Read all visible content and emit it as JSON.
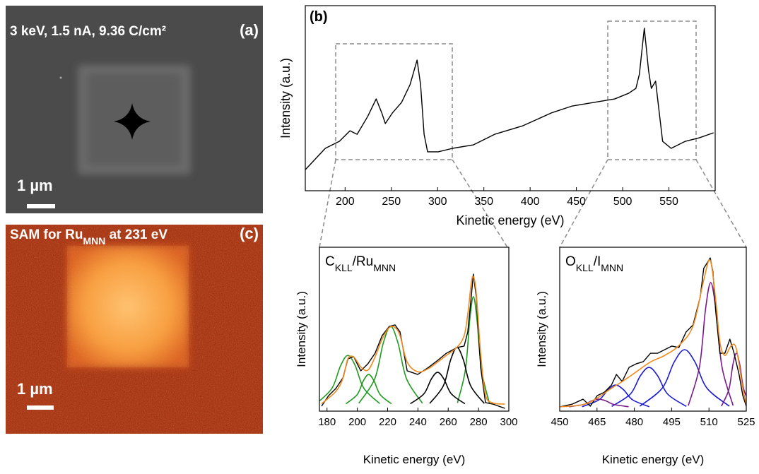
{
  "image_panels": [
    {
      "caption": [
        {
          "text": "3 keV, 1.5 nA, 9.36 C/cm²"
        }
      ],
      "label": "(a)",
      "scale_bar": "1 µm"
    },
    {
      "caption": [
        {
          "text": "SAM for Ru"
        },
        {
          "text": "MNN",
          "sub": true
        },
        {
          "text": " at 231 eV"
        }
      ],
      "label": "(c)",
      "scale_bar": "1 µm"
    }
  ],
  "chart_data": [
    {
      "type": "line",
      "label": "(b)",
      "x_label": "Kinetic energy (eV)",
      "y_label": "Intensity (a.u.)",
      "xlim": [
        157,
        600
      ],
      "ylim": [
        0,
        100
      ],
      "xticks": [
        200,
        250,
        300,
        350,
        400,
        450,
        500,
        550
      ],
      "series": [
        {
          "color": "#000000",
          "smooth": false,
          "x": [
            157.3,
            178.6,
            193.9,
            205.3,
            213,
            224.4,
            233.6,
            239.7,
            243.5,
            251.1,
            261,
            270.2,
            277.8,
            281.6,
            285.4,
            289.2,
            300.7,
            316,
            338.8,
            361.7,
            392.2,
            422.7,
            445.6,
            468.5,
            491.4,
            506.6,
            514.3,
            518.1,
            523.4,
            528,
            531,
            535.6,
            538.7,
            543.2,
            552.4,
            567.7,
            582.9,
            598.2
          ],
          "values": [
            11.5,
            22.9,
            26.7,
            32.4,
            30.5,
            40.1,
            49.6,
            42,
            36.3,
            42,
            47.7,
            57.3,
            70.6,
            57.3,
            30.5,
            21,
            21,
            22.9,
            24.8,
            30.5,
            35.1,
            42,
            45.8,
            47.7,
            49.6,
            52.7,
            55.3,
            63,
            87.8,
            64.9,
            55.3,
            59.2,
            45.8,
            26.7,
            22.9,
            26.7,
            28.6,
            31.3
          ]
        }
      ]
    },
    {
      "type": "line",
      "title": [
        {
          "text": "C"
        },
        {
          "text": "KLL",
          "sub": true
        },
        {
          "text": "/Ru"
        },
        {
          "text": "MNN",
          "sub": true
        }
      ],
      "x_label": "Kinetic energy (eV)",
      "y_label": "Intensity (a.u.)",
      "xlim": [
        175,
        300
      ],
      "ylim": [
        0,
        100
      ],
      "xticks": [
        180,
        200,
        220,
        240,
        260,
        280,
        300
      ],
      "series": [
        {
          "color": "#1f9a1f",
          "smooth": true,
          "x": [
            173,
            183.3,
            188.9,
            193.8,
            198.7,
            204.3,
            214.8
          ],
          "values": [
            4.6,
            14,
            27.6,
            34,
            27.6,
            14,
            4.6
          ]
        },
        {
          "color": "#1f9a1f",
          "smooth": true,
          "x": [
            192.5,
            200,
            204,
            207.5,
            211,
            215,
            222.5
          ],
          "values": [
            4.5,
            10.2,
            18.5,
            22.4,
            18.5,
            10.2,
            4.5
          ]
        },
        {
          "color": "#1f9a1f",
          "smooth": true,
          "x": [
            201,
            211.5,
            217.1,
            222,
            226.9,
            232.5,
            243
          ],
          "values": [
            4.8,
            19.7,
            41.4,
            51.7,
            41.4,
            19.7,
            4.8
          ]
        },
        {
          "color": "#1f9a1f",
          "smooth": true,
          "x": [
            266.1,
            271.4,
            274.2,
            276.6,
            279,
            281.9,
            287.1
          ],
          "values": [
            5,
            25.6,
            55.6,
            69.8,
            55.6,
            25.6,
            5
          ]
        },
        {
          "color": "#000000",
          "smooth": true,
          "x": [
            235,
            244,
            248.8,
            253,
            257.2,
            262,
            271
          ],
          "values": [
            4.5,
            10.6,
            19.5,
            23.7,
            19.5,
            10.6,
            4.5
          ]
        },
        {
          "color": "#000000",
          "smooth": true,
          "x": [
            247.8,
            256.8,
            261.6,
            265.8,
            270,
            274.8,
            283.8
          ],
          "values": [
            4.7,
            15.5,
            31.3,
            38.8,
            31.3,
            15.5,
            4.7
          ]
        },
        {
          "color": "#000000",
          "smooth": false,
          "x": [
            176.4,
            181.1,
            185.8,
            190.5,
            193.8,
            197.6,
            202.3,
            207,
            211.7,
            216.4,
            221.1,
            224.9,
            228.2,
            232.9,
            239.9,
            247,
            253.1,
            258.8,
            265.8,
            270.5,
            272.9,
            275.2,
            276.6,
            278.5,
            281.4,
            284.6,
            289.4,
            297.4
          ],
          "values": [
            3,
            9.5,
            13.8,
            20.3,
            31.9,
            33.2,
            24.6,
            28.9,
            35.3,
            46.1,
            51.7,
            52.6,
            48.3,
            24.6,
            22.4,
            26.7,
            31,
            35.3,
            38.8,
            39.7,
            48.3,
            69.8,
            83.6,
            69.8,
            26.7,
            5.2,
            4.3,
            1.7
          ]
        },
        {
          "color": "#f08a1e",
          "smooth": true,
          "x": [
            176.4,
            185.8,
            190.5,
            193.8,
            197.6,
            202.3,
            207,
            211.7,
            216.4,
            221.1,
            224.9,
            228.2,
            232.9,
            239.9,
            247,
            253.1,
            258.8,
            265.8,
            270.5,
            273,
            275.2,
            276.6,
            278.5,
            281.4,
            284.6,
            289.4,
            297.4
          ],
          "values": [
            4.5,
            12,
            20,
            32,
            33,
            27,
            25,
            33,
            44,
            51,
            51,
            46,
            30,
            24,
            26,
            30,
            34,
            39,
            46,
            60,
            78,
            82,
            72,
            35,
            10,
            5,
            4.3
          ]
        }
      ]
    },
    {
      "type": "line",
      "title": [
        {
          "text": "O"
        },
        {
          "text": "KLL",
          "sub": true
        },
        {
          "text": "/I"
        },
        {
          "text": "MNN",
          "sub": true
        }
      ],
      "x_label": "Kinetic energy (eV)",
      "y_label": "Intensity (a.u.)",
      "xlim": [
        450,
        525
      ],
      "ylim": [
        0,
        100
      ],
      "xticks": [
        450,
        465,
        480,
        495,
        510,
        525
      ],
      "series": [
        {
          "color": "#1a1ad6",
          "smooth": true,
          "x": [
            459,
            465.8,
            469.4,
            472.5,
            475.7,
            479.3,
            486
          ],
          "values": [
            2.7,
            6.9,
            13,
            15.9,
            13,
            6.9,
            2.7
          ]
        },
        {
          "color": "#1a1ad6",
          "smooth": true,
          "x": [
            470.9,
            478.4,
            482.4,
            485.9,
            489.4,
            493.4,
            500.9
          ],
          "values": [
            2.9,
            10.4,
            21.5,
            26.7,
            21.5,
            10.4,
            2.9
          ]
        },
        {
          "color": "#1a1ad6",
          "smooth": true,
          "x": [
            482.2,
            491.2,
            496,
            500.2,
            504.4,
            509.2,
            518.2
          ],
          "values": [
            3,
            14,
            29.9,
            37.5,
            29.9,
            14,
            3
          ]
        },
        {
          "color": "#7a1a8a",
          "smooth": true,
          "x": [
            453.7,
            459.7,
            462.9,
            465.7,
            468.5,
            471.7,
            477.7
          ],
          "values": [
            2.7,
            4.1,
            6.3,
            7.3,
            6.3,
            4.1,
            2.7
          ]
        },
        {
          "color": "#7a1a8a",
          "smooth": true,
          "x": [
            501.7,
            506.2,
            508.6,
            510.7,
            512.8,
            515.2,
            519.7
          ],
          "values": [
            3.4,
            27.2,
            62,
            78.4,
            62,
            27.2,
            3.4
          ]
        },
        {
          "color": "#7a1a8a",
          "smooth": true,
          "x": [
            515,
            518,
            519.6,
            521,
            522.4,
            524,
            527
          ],
          "values": [
            3,
            13.2,
            28.2,
            35.3,
            28.2,
            13.2,
            3
          ]
        },
        {
          "color": "#000000",
          "smooth": false,
          "x": [
            450,
            455.1,
            459.4,
            462.3,
            465.1,
            468,
            470.8,
            472.8,
            475.1,
            477.9,
            480.8,
            483.6,
            486.5,
            489.3,
            492.2,
            495.1,
            497.9,
            500.8,
            503.6,
            506.5,
            507.9,
            509.3,
            510.5,
            511.6,
            512.7,
            514.4,
            516.4,
            518.4,
            520.1,
            522.1,
            523.6,
            525
          ],
          "values": [
            2.6,
            4.3,
            7.3,
            3,
            9.5,
            11.6,
            15.9,
            22.4,
            18.1,
            26.7,
            28.9,
            30.2,
            35.3,
            35.3,
            37.5,
            39.7,
            38.8,
            48.3,
            52.6,
            69.8,
            87.1,
            90.5,
            93.5,
            84.9,
            61.2,
            35.3,
            35.3,
            43.9,
            35.3,
            22.4,
            9.5,
            3
          ]
        },
        {
          "color": "#f08a1e",
          "smooth": true,
          "x": [
            450,
            459.4,
            465.1,
            470.8,
            475.1,
            480.8,
            486.5,
            492.2,
            497.9,
            503.6,
            507.9,
            510.5,
            512.7,
            514.4,
            516.4,
            519,
            521,
            523.6,
            525
          ],
          "values": [
            2.6,
            4,
            8,
            14,
            18,
            24,
            30,
            34,
            40,
            52,
            80,
            92,
            68,
            42,
            34,
            40,
            38,
            14,
            4
          ]
        }
      ]
    }
  ]
}
